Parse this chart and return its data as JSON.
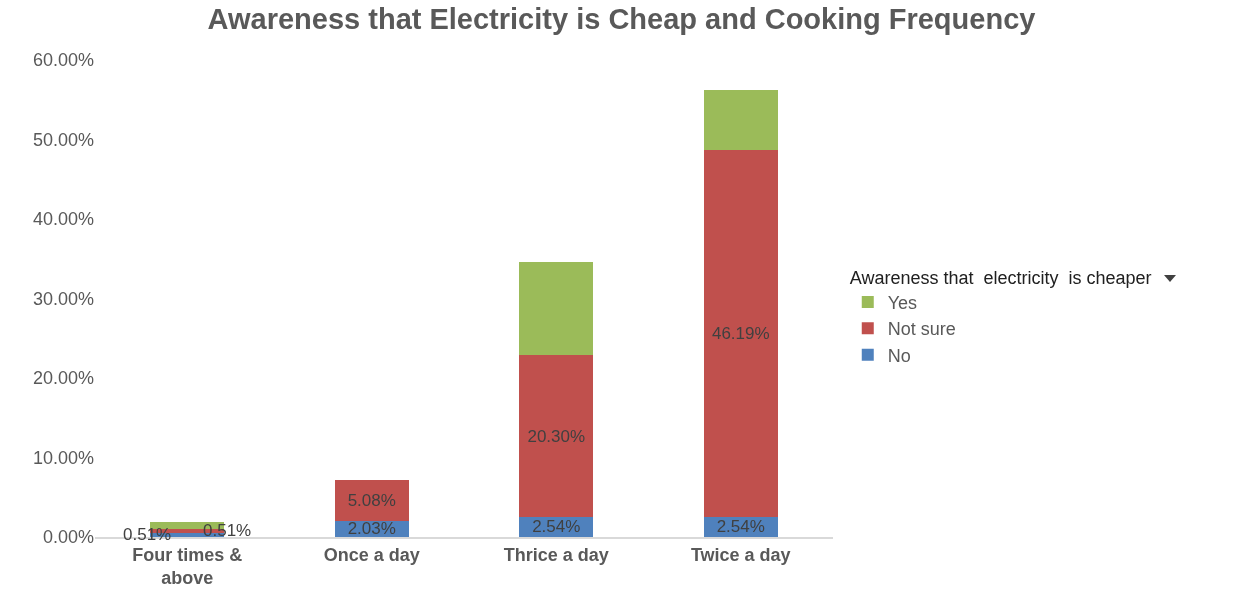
{
  "chart_data": {
    "type": "bar",
    "stacked": true,
    "title": "Awareness that Electricity is Cheap and Cooking Frequency",
    "legend_title": "Awareness that  electricity  is cheaper",
    "legend": "right",
    "grid": false,
    "categories": [
      "Four times & above",
      "Once a day",
      "Thrice a day",
      "Twice a day"
    ],
    "ylim": [
      0,
      60
    ],
    "yticks": [
      {
        "value": 0,
        "label": "0.00%"
      },
      {
        "value": 10,
        "label": "10.00%"
      },
      {
        "value": 20,
        "label": "20.00%"
      },
      {
        "value": 30,
        "label": "30.00%"
      },
      {
        "value": 40,
        "label": "40.00%"
      },
      {
        "value": 50,
        "label": "50.00%"
      },
      {
        "value": 60,
        "label": "60.00%"
      }
    ],
    "series": [
      {
        "name": "No",
        "color": "#4f81bd",
        "values": [
          0.51,
          2.03,
          2.54,
          2.54
        ],
        "value_labels": [
          "0.51%",
          "2.03%",
          "2.54%",
          "2.54%"
        ]
      },
      {
        "name": "Not sure",
        "color": "#c0504d",
        "values": [
          0.51,
          5.08,
          20.3,
          46.19
        ],
        "value_labels": [
          "0.51%",
          "5.08%",
          "20.30%",
          "46.19%"
        ]
      },
      {
        "name": "Yes",
        "color": "#9bbb59",
        "values": [
          0.9,
          null,
          11.7,
          7.5
        ],
        "value_labels": [
          null,
          null,
          null,
          null
        ]
      }
    ]
  }
}
